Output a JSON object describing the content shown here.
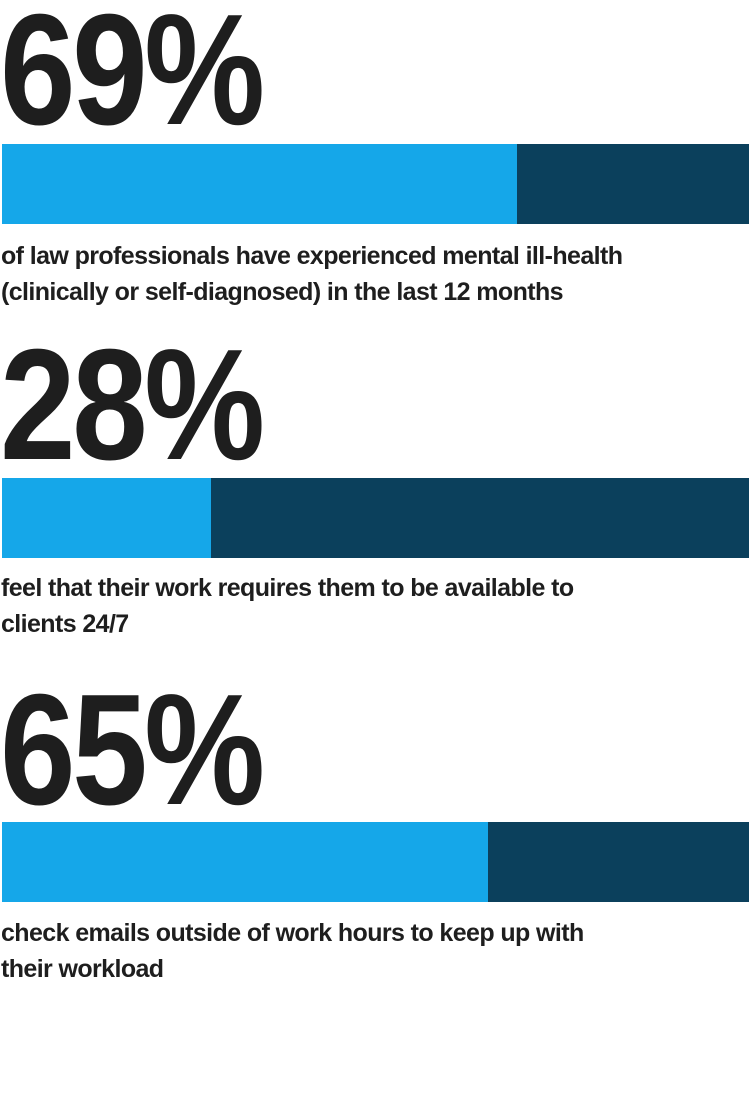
{
  "colors": {
    "filled": "#15a7e9",
    "remainder": "#0b405c",
    "text": "#1e1e1e"
  },
  "chart_data": {
    "type": "bar",
    "orientation": "horizontal-stacked-progress",
    "range": [
      0,
      100
    ],
    "items": [
      {
        "value": 69,
        "label": "69%",
        "caption": [
          "of law professionals have experienced mental ill-health",
          "(clinically or self-diagnosed) in the last 12 months"
        ]
      },
      {
        "value": 28,
        "label": "28%",
        "caption": [
          "feel that their work requires them to be available to",
          "clients 24/7"
        ]
      },
      {
        "value": 65,
        "label": "65%",
        "caption": [
          "check emails outside of work hours to keep up with",
          "their workload"
        ]
      }
    ]
  }
}
